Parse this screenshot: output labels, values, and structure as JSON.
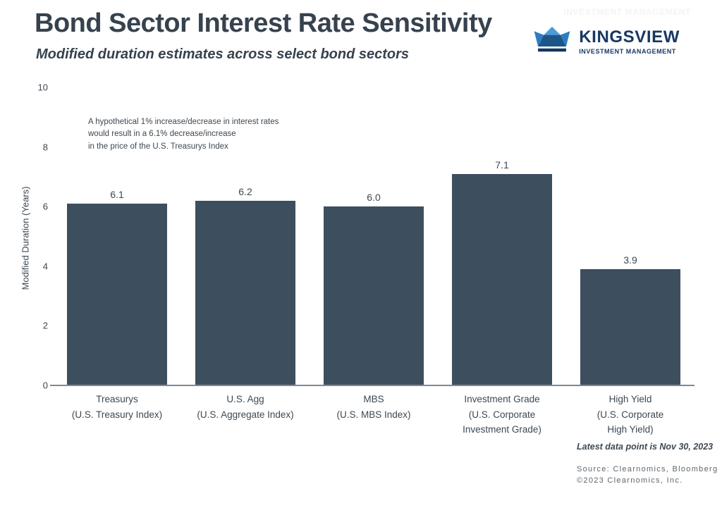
{
  "header": {
    "watermark": "INVESTMENT MANAGEMENT"
  },
  "logo": {
    "name": "KINGSVIEW",
    "tagline": "INVESTMENT MANAGEMENT",
    "colors": {
      "navy_text": "#173863",
      "crown_light": "#4b9bd7",
      "crown_mid": "#2d7dc2",
      "crown_body": "#1c5688",
      "crown_base": "#15375c"
    }
  },
  "chart_data": {
    "type": "bar",
    "title": "Bond Sector Interest Rate Sensitivity",
    "subtitle": "Modified duration estimates across select bond sectors",
    "categories": [
      "Treasurys\n(U.S. Treasury Index)",
      "U.S. Agg\n(U.S. Aggregate Index)",
      "MBS\n(U.S. MBS Index)",
      "Investment Grade\n(U.S. Corporate\nInvestment Grade)",
      "High Yield\n(U.S. Corporate\nHigh Yield)"
    ],
    "values": [
      6.1,
      6.2,
      6.0,
      7.1,
      3.9
    ],
    "value_labels": [
      "6.1",
      "6.2",
      "6.0",
      "7.1",
      "3.9"
    ],
    "xlabel": "",
    "ylabel": "Modified Duration (Years)",
    "ylim": [
      0,
      10
    ],
    "yticks": [
      0,
      2,
      4,
      6,
      8,
      10
    ],
    "bar_color": "#3d4e5f",
    "grid": false,
    "legend_position": "none",
    "annotation": "A hypothetical 1% increase/decrease in interest rates\nwould result in a 6.1% decrease/increase\nin the price of the U.S. Treasurys Index"
  },
  "footer": {
    "note": "Latest data point is Nov 30, 2023",
    "source_line1": "Source: Clearnomics, Bloomberg",
    "source_line2": "©2023 Clearnomics, Inc."
  }
}
